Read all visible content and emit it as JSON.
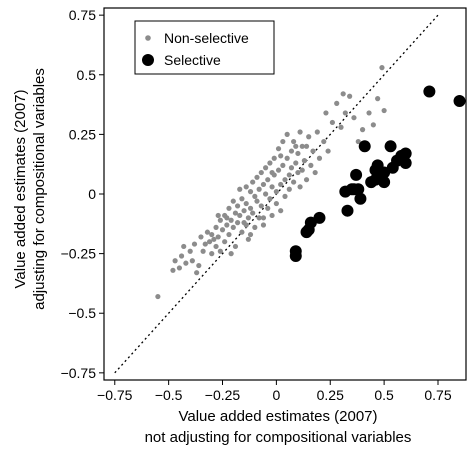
{
  "chart_data": {
    "type": "scatter",
    "title": "",
    "xlabel_lines": [
      "Value added estimates (2007)",
      "not adjusting for compositional variables"
    ],
    "ylabel_lines": [
      "Value added estimates (2007)",
      "adjusting for compositional variables"
    ],
    "xlim": [
      -0.8,
      0.88
    ],
    "ylim": [
      -0.78,
      0.78
    ],
    "xticks": [
      -0.75,
      -0.5,
      -0.25,
      0,
      0.25,
      0.5,
      0.75
    ],
    "xtick_labels": [
      "−0.75",
      "−0.5",
      "−0.25",
      "0",
      "0.25",
      "0.5",
      "0.75"
    ],
    "yticks": [
      -0.75,
      -0.5,
      -0.25,
      0,
      0.25,
      0.5,
      0.75
    ],
    "ytick_labels": [
      "−0.75",
      "−0.5",
      "−0.25",
      "0",
      "0.25",
      "0.5",
      "0.75"
    ],
    "grid": false,
    "legend_position": "top-left",
    "reference_line": {
      "style": "dotted",
      "slope": 1,
      "intercept": 0
    },
    "colors": {
      "non_selective": "#8c8c8c",
      "selective": "#000000",
      "reference": "#000000"
    },
    "series": [
      {
        "name": "Non-selective",
        "marker": "small-dot",
        "points": [
          [
            -0.55,
            -0.43
          ],
          [
            -0.48,
            -0.32
          ],
          [
            -0.47,
            -0.28
          ],
          [
            -0.45,
            -0.31
          ],
          [
            -0.44,
            -0.26
          ],
          [
            -0.42,
            -0.29
          ],
          [
            -0.4,
            -0.24
          ],
          [
            -0.38,
            -0.21
          ],
          [
            -0.37,
            -0.33
          ],
          [
            -0.36,
            -0.3
          ],
          [
            -0.35,
            -0.18
          ],
          [
            -0.34,
            -0.24
          ],
          [
            -0.33,
            -0.21
          ],
          [
            -0.32,
            -0.16
          ],
          [
            -0.31,
            -0.2
          ],
          [
            -0.3,
            -0.17
          ],
          [
            -0.3,
            -0.25
          ],
          [
            -0.29,
            -0.19
          ],
          [
            -0.28,
            -0.14
          ],
          [
            -0.28,
            -0.22
          ],
          [
            -0.27,
            -0.18
          ],
          [
            -0.26,
            -0.11
          ],
          [
            -0.26,
            -0.24
          ],
          [
            -0.25,
            -0.15
          ],
          [
            -0.24,
            -0.09
          ],
          [
            -0.24,
            -0.2
          ],
          [
            -0.23,
            -0.13
          ],
          [
            -0.22,
            -0.06
          ],
          [
            -0.22,
            -0.17
          ],
          [
            -0.21,
            -0.11
          ],
          [
            -0.2,
            -0.03
          ],
          [
            -0.2,
            -0.14
          ],
          [
            -0.19,
            -0.08
          ],
          [
            -0.19,
            -0.22
          ],
          [
            -0.18,
            -0.05
          ],
          [
            -0.18,
            -0.12
          ],
          [
            -0.17,
            0.02
          ],
          [
            -0.17,
            -0.09
          ],
          [
            -0.16,
            -0.16
          ],
          [
            -0.16,
            -0.02
          ],
          [
            -0.15,
            -0.07
          ],
          [
            -0.15,
            -0.12
          ],
          [
            -0.14,
            0.03
          ],
          [
            -0.14,
            -0.04
          ],
          [
            -0.13,
            -0.1
          ],
          [
            -0.13,
            -0.19
          ],
          [
            -0.12,
            0.01
          ],
          [
            -0.12,
            -0.06
          ],
          [
            -0.11,
            0.05
          ],
          [
            -0.11,
            -0.08
          ],
          [
            -0.1,
            -0.01
          ],
          [
            -0.1,
            -0.14
          ],
          [
            -0.09,
            0.07
          ],
          [
            -0.09,
            -0.03
          ],
          [
            -0.08,
            -0.1
          ],
          [
            -0.08,
            0.02
          ],
          [
            -0.07,
            0.09
          ],
          [
            -0.07,
            -0.05
          ],
          [
            -0.06,
            -0.13
          ],
          [
            -0.06,
            0.04
          ],
          [
            -0.05,
            0.0
          ],
          [
            -0.05,
            0.11
          ],
          [
            -0.04,
            -0.06
          ],
          [
            -0.04,
            0.06
          ],
          [
            -0.03,
            0.13
          ],
          [
            -0.03,
            -0.02
          ],
          [
            -0.02,
            0.03
          ],
          [
            -0.02,
            -0.09
          ],
          [
            -0.01,
            0.08
          ],
          [
            -0.01,
            0.15
          ],
          [
            0.0,
            0.01
          ],
          [
            0.0,
            -0.04
          ],
          [
            0.01,
            0.1
          ],
          [
            0.01,
            0.19
          ],
          [
            0.02,
            0.04
          ],
          [
            0.02,
            -0.07
          ],
          [
            0.03,
            0.12
          ],
          [
            0.03,
            0.22
          ],
          [
            0.04,
            0.06
          ],
          [
            0.04,
            -0.01
          ],
          [
            0.05,
            0.15
          ],
          [
            0.05,
            0.25
          ],
          [
            0.06,
            0.08
          ],
          [
            0.06,
            0.02
          ],
          [
            0.07,
            0.18
          ],
          [
            0.07,
            0.11
          ],
          [
            0.08,
            0.05
          ],
          [
            0.08,
            0.22
          ],
          [
            0.09,
            0.13
          ],
          [
            0.1,
            0.09
          ],
          [
            0.1,
            0.17
          ],
          [
            0.11,
            0.03
          ],
          [
            0.12,
            0.2
          ],
          [
            0.12,
            0.1
          ],
          [
            0.13,
            0.14
          ],
          [
            0.14,
            0.06
          ],
          [
            0.15,
            0.24
          ],
          [
            0.16,
            0.12
          ],
          [
            0.17,
            0.18
          ],
          [
            0.18,
            0.09
          ],
          [
            0.2,
            0.15
          ],
          [
            0.22,
            0.22
          ],
          [
            0.24,
            0.18
          ],
          [
            0.26,
            0.3
          ],
          [
            0.28,
            0.38
          ],
          [
            0.3,
            0.28
          ],
          [
            0.31,
            0.42
          ],
          [
            0.32,
            0.34
          ],
          [
            0.34,
            0.41
          ],
          [
            0.36,
            0.32
          ],
          [
            0.38,
            0.22
          ],
          [
            0.4,
            0.27
          ],
          [
            0.43,
            0.34
          ],
          [
            0.45,
            0.29
          ],
          [
            0.47,
            0.4
          ],
          [
            0.49,
            0.53
          ],
          [
            0.5,
            0.35
          ],
          [
            -0.43,
            -0.22
          ],
          [
            -0.39,
            -0.28
          ],
          [
            -0.27,
            -0.09
          ],
          [
            -0.23,
            -0.1
          ],
          [
            -0.21,
            -0.25
          ],
          [
            -0.14,
            -0.13
          ],
          [
            -0.12,
            -0.17
          ],
          [
            -0.06,
            -0.1
          ],
          [
            -0.02,
            0.09
          ],
          [
            0.02,
            0.16
          ],
          [
            0.09,
            0.2
          ],
          [
            0.11,
            0.26
          ],
          [
            0.14,
            0.2
          ],
          [
            0.19,
            0.26
          ],
          [
            0.23,
            0.34
          ]
        ]
      },
      {
        "name": "Selective",
        "marker": "large-dot",
        "points": [
          [
            0.09,
            -0.26
          ],
          [
            0.09,
            -0.24
          ],
          [
            0.14,
            -0.16
          ],
          [
            0.16,
            -0.12
          ],
          [
            0.15,
            -0.15
          ],
          [
            0.2,
            -0.1
          ],
          [
            0.32,
            0.01
          ],
          [
            0.33,
            -0.07
          ],
          [
            0.35,
            0.02
          ],
          [
            0.36,
            0.02
          ],
          [
            0.37,
            0.08
          ],
          [
            0.38,
            0.02
          ],
          [
            0.41,
            0.2
          ],
          [
            0.46,
            0.06
          ],
          [
            0.46,
            0.1
          ],
          [
            0.47,
            0.12
          ],
          [
            0.5,
            0.05
          ],
          [
            0.5,
            0.09
          ],
          [
            0.53,
            0.2
          ],
          [
            0.54,
            0.11
          ],
          [
            0.56,
            0.14
          ],
          [
            0.58,
            0.16
          ],
          [
            0.6,
            0.17
          ],
          [
            0.6,
            0.13
          ],
          [
            0.71,
            0.43
          ],
          [
            0.85,
            0.39
          ],
          [
            0.44,
            0.05
          ],
          [
            0.39,
            -0.02
          ]
        ]
      }
    ]
  }
}
